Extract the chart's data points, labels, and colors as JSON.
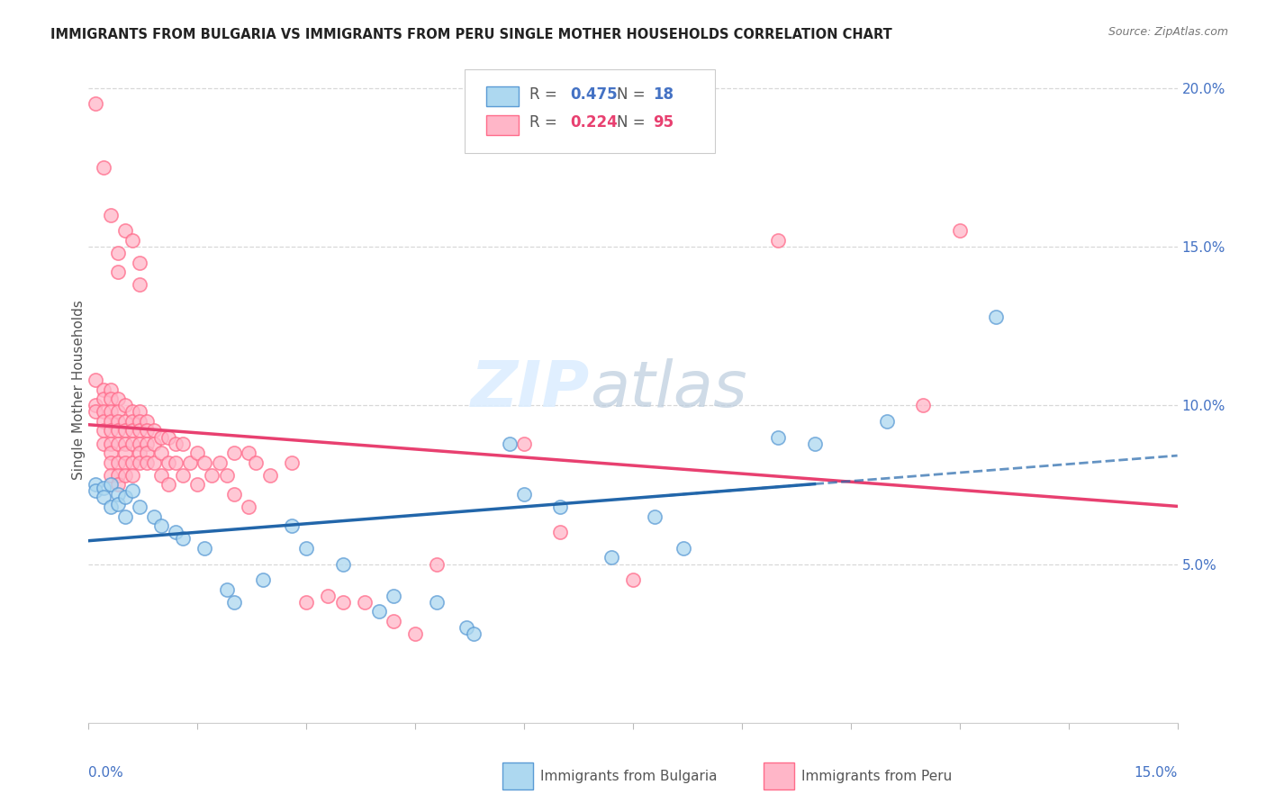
{
  "title": "IMMIGRANTS FROM BULGARIA VS IMMIGRANTS FROM PERU SINGLE MOTHER HOUSEHOLDS CORRELATION CHART",
  "source": "Source: ZipAtlas.com",
  "ylabel": "Single Mother Households",
  "color_bulgaria": "#ADD8F0",
  "color_peru": "#FFB6C8",
  "color_bulgaria_edge": "#5B9BD5",
  "color_peru_edge": "#FF6B8A",
  "color_bulgaria_line": "#2266AA",
  "color_peru_line": "#E84070",
  "background_color": "#ffffff",
  "grid_color": "#d8d8d8",
  "xlim": [
    0.0,
    0.15
  ],
  "ylim": [
    0.0,
    0.21
  ],
  "watermark_color": "#DDEEFF",
  "watermark_zip": "ZIP",
  "watermark_atlas": "atlas",
  "bulgaria_points": [
    [
      0.001,
      0.075
    ],
    [
      0.001,
      0.073
    ],
    [
      0.002,
      0.074
    ],
    [
      0.002,
      0.071
    ],
    [
      0.003,
      0.075
    ],
    [
      0.003,
      0.068
    ],
    [
      0.004,
      0.072
    ],
    [
      0.004,
      0.069
    ],
    [
      0.005,
      0.071
    ],
    [
      0.005,
      0.065
    ],
    [
      0.006,
      0.073
    ],
    [
      0.007,
      0.068
    ],
    [
      0.009,
      0.065
    ],
    [
      0.01,
      0.062
    ],
    [
      0.012,
      0.06
    ],
    [
      0.013,
      0.058
    ],
    [
      0.016,
      0.055
    ],
    [
      0.019,
      0.042
    ],
    [
      0.02,
      0.038
    ],
    [
      0.024,
      0.045
    ],
    [
      0.028,
      0.062
    ],
    [
      0.03,
      0.055
    ],
    [
      0.035,
      0.05
    ],
    [
      0.04,
      0.035
    ],
    [
      0.042,
      0.04
    ],
    [
      0.048,
      0.038
    ],
    [
      0.052,
      0.03
    ],
    [
      0.053,
      0.028
    ],
    [
      0.058,
      0.088
    ],
    [
      0.06,
      0.072
    ],
    [
      0.065,
      0.068
    ],
    [
      0.072,
      0.052
    ],
    [
      0.078,
      0.065
    ],
    [
      0.082,
      0.055
    ],
    [
      0.095,
      0.09
    ],
    [
      0.1,
      0.088
    ],
    [
      0.11,
      0.095
    ],
    [
      0.125,
      0.128
    ]
  ],
  "peru_points": [
    [
      0.001,
      0.195
    ],
    [
      0.002,
      0.175
    ],
    [
      0.003,
      0.16
    ],
    [
      0.004,
      0.148
    ],
    [
      0.004,
      0.142
    ],
    [
      0.005,
      0.155
    ],
    [
      0.006,
      0.152
    ],
    [
      0.007,
      0.145
    ],
    [
      0.007,
      0.138
    ],
    [
      0.001,
      0.108
    ],
    [
      0.001,
      0.1
    ],
    [
      0.001,
      0.098
    ],
    [
      0.002,
      0.105
    ],
    [
      0.002,
      0.102
    ],
    [
      0.002,
      0.098
    ],
    [
      0.002,
      0.095
    ],
    [
      0.002,
      0.092
    ],
    [
      0.002,
      0.088
    ],
    [
      0.003,
      0.105
    ],
    [
      0.003,
      0.102
    ],
    [
      0.003,
      0.098
    ],
    [
      0.003,
      0.095
    ],
    [
      0.003,
      0.092
    ],
    [
      0.003,
      0.088
    ],
    [
      0.003,
      0.085
    ],
    [
      0.003,
      0.082
    ],
    [
      0.003,
      0.078
    ],
    [
      0.004,
      0.102
    ],
    [
      0.004,
      0.098
    ],
    [
      0.004,
      0.095
    ],
    [
      0.004,
      0.092
    ],
    [
      0.004,
      0.088
    ],
    [
      0.004,
      0.082
    ],
    [
      0.004,
      0.078
    ],
    [
      0.004,
      0.075
    ],
    [
      0.005,
      0.1
    ],
    [
      0.005,
      0.095
    ],
    [
      0.005,
      0.092
    ],
    [
      0.005,
      0.088
    ],
    [
      0.005,
      0.085
    ],
    [
      0.005,
      0.082
    ],
    [
      0.005,
      0.078
    ],
    [
      0.006,
      0.098
    ],
    [
      0.006,
      0.095
    ],
    [
      0.006,
      0.092
    ],
    [
      0.006,
      0.088
    ],
    [
      0.006,
      0.082
    ],
    [
      0.006,
      0.078
    ],
    [
      0.007,
      0.098
    ],
    [
      0.007,
      0.095
    ],
    [
      0.007,
      0.092
    ],
    [
      0.007,
      0.088
    ],
    [
      0.007,
      0.085
    ],
    [
      0.007,
      0.082
    ],
    [
      0.008,
      0.095
    ],
    [
      0.008,
      0.092
    ],
    [
      0.008,
      0.088
    ],
    [
      0.008,
      0.085
    ],
    [
      0.008,
      0.082
    ],
    [
      0.009,
      0.092
    ],
    [
      0.009,
      0.088
    ],
    [
      0.009,
      0.082
    ],
    [
      0.01,
      0.09
    ],
    [
      0.01,
      0.085
    ],
    [
      0.01,
      0.078
    ],
    [
      0.011,
      0.09
    ],
    [
      0.011,
      0.082
    ],
    [
      0.011,
      0.075
    ],
    [
      0.012,
      0.088
    ],
    [
      0.012,
      0.082
    ],
    [
      0.013,
      0.088
    ],
    [
      0.013,
      0.078
    ],
    [
      0.014,
      0.082
    ],
    [
      0.015,
      0.085
    ],
    [
      0.015,
      0.075
    ],
    [
      0.016,
      0.082
    ],
    [
      0.017,
      0.078
    ],
    [
      0.018,
      0.082
    ],
    [
      0.019,
      0.078
    ],
    [
      0.02,
      0.085
    ],
    [
      0.02,
      0.072
    ],
    [
      0.022,
      0.085
    ],
    [
      0.022,
      0.068
    ],
    [
      0.023,
      0.082
    ],
    [
      0.025,
      0.078
    ],
    [
      0.028,
      0.082
    ],
    [
      0.03,
      0.038
    ],
    [
      0.033,
      0.04
    ],
    [
      0.035,
      0.038
    ],
    [
      0.038,
      0.038
    ],
    [
      0.042,
      0.032
    ],
    [
      0.045,
      0.028
    ],
    [
      0.048,
      0.05
    ],
    [
      0.06,
      0.088
    ],
    [
      0.065,
      0.06
    ],
    [
      0.075,
      0.045
    ],
    [
      0.095,
      0.152
    ],
    [
      0.115,
      0.1
    ],
    [
      0.12,
      0.155
    ]
  ]
}
